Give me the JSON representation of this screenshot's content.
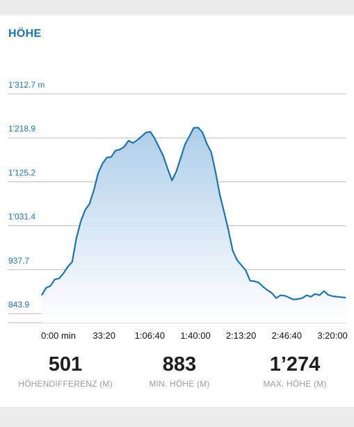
{
  "header": {
    "title": "HÖHE"
  },
  "chart_data": {
    "type": "area",
    "y_ticks": [
      "1'312.7 m",
      "1'218.9",
      "1'125.2",
      "1'031.4",
      "937.7",
      "843.9"
    ],
    "y_tick_values": [
      1312.7,
      1218.9,
      1125.2,
      1031.4,
      937.7,
      843.9
    ],
    "x_ticks": [
      "0:00 min",
      "33:20",
      "1:06:40",
      "1:40:00",
      "2:13:20",
      "2:46:40",
      "3:20:00"
    ],
    "ylim": [
      843.9,
      1312.7
    ],
    "grid": true,
    "color": "#1a74b4",
    "series": [
      {
        "x": [
          "0:00",
          "3:00",
          "6:00",
          "9:00",
          "12:00",
          "15:00",
          "18:00",
          "21:00",
          "24:00",
          "27:00",
          "30:00",
          "33:20",
          "36:00",
          "40:00",
          "43:00",
          "46:00",
          "50:00",
          "53:00",
          "56:00",
          "59:00",
          "62:00",
          "64:00",
          "65:00",
          "66:40",
          "67:00",
          "68:00",
          "70:00",
          "72:00",
          "75:00",
          "78:00",
          "81:00",
          "84:00",
          "87:00",
          "90:00",
          "93:00",
          "95:00",
          "97:00",
          "100:00",
          "103:00",
          "106:00",
          "109:00",
          "112:00",
          "115:00",
          "118:00",
          "121:00",
          "124:00",
          "127:00",
          "130:00",
          "133:20",
          "136:00",
          "139:00",
          "142:00",
          "145:00",
          "148:00",
          "151:00",
          "154:00",
          "157:00",
          "160:00",
          "163:00",
          "166:40",
          "170:00",
          "173:00",
          "176:00",
          "179:00",
          "182:00",
          "185:00",
          "188:00",
          "191:00",
          "194:00",
          "197:00",
          "200:00"
        ],
        "values": [
          883,
          899,
          903,
          917,
          919,
          930,
          944,
          954,
          1005,
          1041,
          1065,
          1078,
          1107,
          1144,
          1164,
          1177,
          1178,
          1192,
          1194,
          1200,
          1213,
          1208,
          1214,
          1222,
          1230,
          1232,
          1218,
          1199,
          1180,
          1153,
          1128,
          1147,
          1176,
          1205,
          1222,
          1240,
          1241,
          1231,
          1207,
          1189,
          1148,
          1098,
          1061,
          1022,
          978,
          958,
          947,
          936,
          914,
          913,
          910,
          901,
          894,
          888,
          877,
          883,
          882,
          878,
          874,
          875,
          877,
          883,
          880,
          886,
          883,
          892,
          884,
          881,
          880,
          879,
          878
        ]
      }
    ]
  },
  "stats": [
    {
      "value": "501",
      "label": "HÖHENDIFFERENZ (M)"
    },
    {
      "value": "883",
      "label": "MIN. HÖHE (M)"
    },
    {
      "value": "1’274",
      "label": "MAX. HÖHE (M)"
    }
  ]
}
